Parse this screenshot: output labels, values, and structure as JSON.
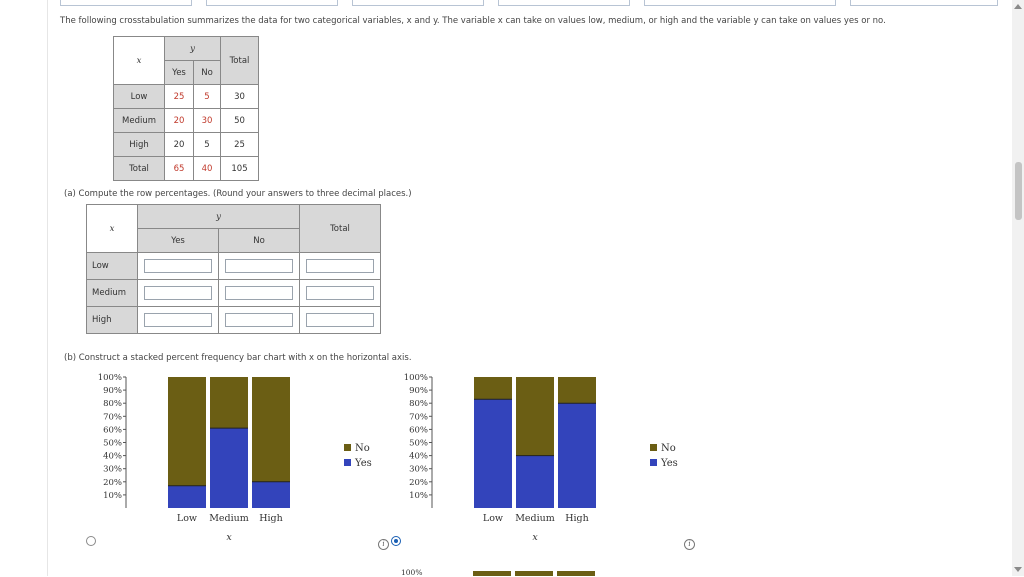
{
  "intro_text": "The following crosstabulation summarizes the data for two categorical variables, x and y. The variable x can take on values low, medium, or high and the variable y can take on values yes or no.",
  "crosstab": {
    "y_label": "y",
    "x_label": "x",
    "headers": [
      "Yes",
      "No",
      "Total"
    ],
    "rows": [
      {
        "label": "Low",
        "values": [
          "25",
          "5",
          "30"
        ]
      },
      {
        "label": "Medium",
        "values": [
          "20",
          "30",
          "50"
        ]
      },
      {
        "label": "High",
        "values": [
          "20",
          "5",
          "25"
        ]
      },
      {
        "label": "Total",
        "values": [
          "65",
          "40",
          "105"
        ]
      }
    ]
  },
  "part_a": {
    "prompt": "(a)  Compute the row percentages. (Round your answers to three decimal places.)",
    "y_label": "y",
    "x_label": "x",
    "headers": [
      "Yes",
      "No",
      "Total"
    ],
    "rows": [
      {
        "label": "Low",
        "inputs": [
          "",
          "",
          ""
        ]
      },
      {
        "label": "Medium",
        "inputs": [
          "",
          "",
          ""
        ]
      },
      {
        "label": "High",
        "inputs": [
          "",
          "",
          ""
        ]
      }
    ]
  },
  "part_b": {
    "prompt": "(b)  Construct a stacked percent frequency bar chart with x on the horizontal axis."
  },
  "colors": {
    "yes": "#3344bb",
    "no": "#6b5e14"
  },
  "chart_data": [
    {
      "type": "bar",
      "stacked": true,
      "categories": [
        "Low",
        "Medium",
        "High"
      ],
      "series": [
        {
          "name": "Yes",
          "values": [
            17,
            61,
            20
          ]
        },
        {
          "name": "No",
          "values": [
            83,
            39,
            80
          ]
        }
      ],
      "xlabel": "x",
      "ylabel": "",
      "ylim": [
        0,
        100
      ],
      "yticks": [
        "10%",
        "20%",
        "30%",
        "40%",
        "50%",
        "60%",
        "70%",
        "80%",
        "90%",
        "100%"
      ],
      "legend": [
        "No",
        "Yes"
      ],
      "legend_position": "right",
      "selected": false
    },
    {
      "type": "bar",
      "stacked": true,
      "categories": [
        "Low",
        "Medium",
        "High"
      ],
      "series": [
        {
          "name": "Yes",
          "values": [
            83,
            40,
            80
          ]
        },
        {
          "name": "No",
          "values": [
            17,
            60,
            20
          ]
        }
      ],
      "xlabel": "x",
      "ylabel": "",
      "ylim": [
        0,
        100
      ],
      "yticks": [
        "10%",
        "20%",
        "30%",
        "40%",
        "50%",
        "60%",
        "70%",
        "80%",
        "90%",
        "100%"
      ],
      "legend": [
        "No",
        "Yes"
      ],
      "legend_position": "right",
      "selected": true
    }
  ],
  "partial_chart_label": "100%"
}
